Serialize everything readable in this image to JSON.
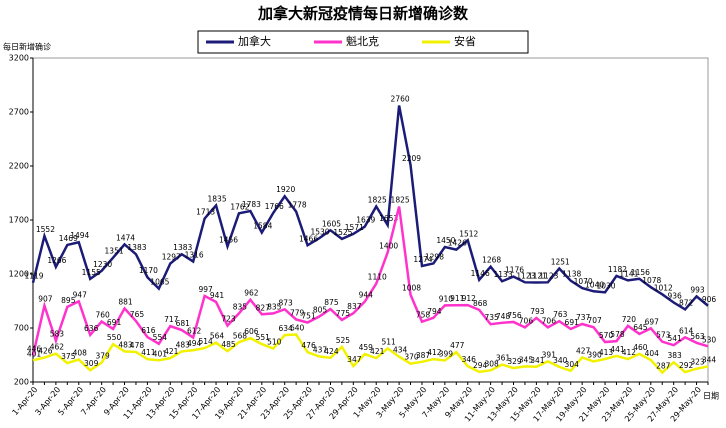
{
  "chart_data": {
    "type": "line",
    "title": "加拿大新冠疫情每日新增确诊数",
    "y_label": "每日新增确诊",
    "x_label": "日期",
    "categories": [
      "1-Apr-20",
      null,
      "3-Apr-20",
      null,
      "5-Apr-20",
      null,
      "7-Apr-20",
      null,
      "9-Apr-20",
      null,
      "11-Apr-20",
      null,
      "13-Apr-20",
      null,
      "15-Apr-20",
      null,
      "17-Apr-20",
      null,
      "19-Apr-20",
      null,
      "21-Apr-20",
      null,
      "23-Apr-20",
      null,
      "25-Apr-20",
      null,
      "27-Apr-20",
      null,
      "29-Apr-20",
      null,
      "1-May-20",
      null,
      "3-May-20",
      null,
      "5-May-20",
      null,
      "7-May-20",
      null,
      "9-May-20",
      null,
      "11-May-20",
      null,
      "13-May-20",
      null,
      "15-May-20",
      null,
      "17-May-20",
      null,
      "19-May-20",
      null,
      "21-May-20",
      null,
      "23-May-20",
      null,
      "25-May-20",
      null,
      "27-May-20",
      null,
      "29-May-20",
      null
    ],
    "series": [
      {
        "name": "加拿大",
        "color": "#1c1c78",
        "values": [
          1119,
          1552,
          1266,
          1469,
          1494,
          1155,
          1230,
          1351,
          1474,
          1383,
          1170,
          1065,
          1297,
          1383,
          1316,
          1713,
          1835,
          1456,
          1762,
          1783,
          1584,
          1766,
          1920,
          1778,
          1466,
          1530,
          1605,
          1525,
          1571,
          1639,
          1825,
          1653,
          2760,
          2209,
          1274,
          1298,
          1450,
          1426,
          1512,
          1146,
          1268,
          1133,
          1176,
          1123,
          1121,
          1123,
          1251,
          1138,
          1070,
          1040,
          1030,
          1182,
          1141,
          1156,
          1078,
          1012,
          936,
          872,
          993,
          906
        ]
      },
      {
        "name": "魁北克",
        "color": "#ff33cc",
        "values": [
          446,
          907,
          583,
          895,
          947,
          636,
          760,
          691,
          881,
          765,
          616,
          554,
          717,
          681,
          612,
          997,
          941,
          723,
          835,
          962,
          827,
          835,
          873,
          779,
          751,
          805,
          875,
          775,
          837,
          944,
          1110,
          1400,
          1825,
          1008,
          758,
          794,
          910,
          911,
          912,
          868,
          735,
          748,
          756,
          706,
          793,
          706,
          763,
          691,
          737,
          707,
          570,
          578,
          720,
          645,
          697,
          573,
          541,
          614,
          563,
          530
        ]
      },
      {
        "name": "安省",
        "color": "#f2f200",
        "values": [
          401,
          426,
          462,
          375,
          408,
          309,
          379,
          550,
          483,
          478,
          411,
          401,
          421,
          483,
          494,
          514,
          564,
          485,
          568,
          606,
          551,
          510,
          634,
          640,
          476,
          437,
          424,
          525,
          347,
          459,
          421,
          511,
          434,
          370,
          387,
          412,
          399,
          477,
          346,
          294,
          308,
          361,
          329,
          345,
          341,
          391,
          340,
          304,
          427,
          390,
          413,
          441,
          412,
          460,
          404,
          287,
          383,
          292,
          323,
          344
        ]
      }
    ],
    "ylim": [
      200,
      3200
    ],
    "yticks": [
      200,
      700,
      1200,
      1700,
      2200,
      2700,
      3200
    ],
    "grid": false,
    "legend": "top"
  }
}
